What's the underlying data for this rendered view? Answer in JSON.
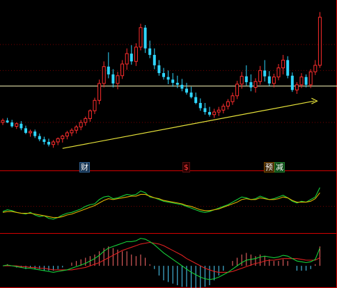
{
  "colors": {
    "background": "#000000",
    "up": "#ff2d2d",
    "down": "#2fd6ff",
    "pane_border": "#d40000",
    "grid": "#7a0000",
    "reference_line": "#fffdbe",
    "trendline": "#e7e33a",
    "osc_line_a": "#16d13a",
    "osc_line_b": "#e0b400",
    "macd_dif": "#16d13a",
    "macd_dea": "#e02020",
    "macd_hist_pos": "#ff6b6b",
    "macd_hist_neg": "#4fd3ff"
  },
  "markers": {
    "cai": "财",
    "dollar": "$",
    "yu": "预",
    "jian": "减"
  },
  "icons": {
    "trend_arrow": "arrow-right-icon"
  },
  "chart_data": [
    {
      "type": "candlestick",
      "pane": "price",
      "candles": [
        [
          101.0,
          101.6,
          100.6,
          101.3
        ],
        [
          101.3,
          101.7,
          100.9,
          101.0
        ],
        [
          101.0,
          101.4,
          100.2,
          100.4
        ],
        [
          100.4,
          101.0,
          100.0,
          100.8
        ],
        [
          100.8,
          101.2,
          99.8,
          100.1
        ],
        [
          100.1,
          100.5,
          99.2,
          99.4
        ],
        [
          99.4,
          99.9,
          98.8,
          99.6
        ],
        [
          99.6,
          99.9,
          98.6,
          98.9
        ],
        [
          98.9,
          99.3,
          98.1,
          98.4
        ],
        [
          98.4,
          98.8,
          97.6,
          98.0
        ],
        [
          98.0,
          98.5,
          97.3,
          97.6
        ],
        [
          97.6,
          98.3,
          97.1,
          98.0
        ],
        [
          98.0,
          98.7,
          97.5,
          98.5
        ],
        [
          98.5,
          99.1,
          97.9,
          98.9
        ],
        [
          98.9,
          99.7,
          98.4,
          99.4
        ],
        [
          99.4,
          100.1,
          98.9,
          99.8
        ],
        [
          99.8,
          100.6,
          99.3,
          100.3
        ],
        [
          100.3,
          101.4,
          99.8,
          101.0
        ],
        [
          101.0,
          101.9,
          100.5,
          101.6
        ],
        [
          101.6,
          103.0,
          101.1,
          102.8
        ],
        [
          102.8,
          104.8,
          102.3,
          104.4
        ],
        [
          104.4,
          107.6,
          103.8,
          107.0
        ],
        [
          107.0,
          110.4,
          106.4,
          109.6
        ],
        [
          109.6,
          111.8,
          107.8,
          108.4
        ],
        [
          108.4,
          109.2,
          106.4,
          107.0
        ],
        [
          107.0,
          108.8,
          106.1,
          108.2
        ],
        [
          108.2,
          110.6,
          107.7,
          110.0
        ],
        [
          110.0,
          112.4,
          109.1,
          111.6
        ],
        [
          111.6,
          112.9,
          109.9,
          110.4
        ],
        [
          110.4,
          113.2,
          109.7,
          112.6
        ],
        [
          112.6,
          116.2,
          112.1,
          115.6
        ],
        [
          115.6,
          116.0,
          111.7,
          112.4
        ],
        [
          112.4,
          113.6,
          110.9,
          111.4
        ],
        [
          111.4,
          112.4,
          109.2,
          109.8
        ],
        [
          109.8,
          110.6,
          108.2,
          108.6
        ],
        [
          108.6,
          109.4,
          107.6,
          108.0
        ],
        [
          108.0,
          109.0,
          106.9,
          107.6
        ],
        [
          107.6,
          108.6,
          106.5,
          107.1
        ],
        [
          107.1,
          108.2,
          106.3,
          106.8
        ],
        [
          106.8,
          107.7,
          105.8,
          106.2
        ],
        [
          106.2,
          107.1,
          105.3,
          105.6
        ],
        [
          105.6,
          106.5,
          104.7,
          104.9
        ],
        [
          104.9,
          105.6,
          103.8,
          104.0
        ],
        [
          104.0,
          104.7,
          102.8,
          103.2
        ],
        [
          103.2,
          104.0,
          102.2,
          102.6
        ],
        [
          102.6,
          103.4,
          101.9,
          102.2
        ],
        [
          102.2,
          103.1,
          101.7,
          102.6
        ],
        [
          102.6,
          103.4,
          102.0,
          102.9
        ],
        [
          102.9,
          103.9,
          102.4,
          103.5
        ],
        [
          103.5,
          104.6,
          103.0,
          104.2
        ],
        [
          104.2,
          105.6,
          103.7,
          105.1
        ],
        [
          105.1,
          107.4,
          104.6,
          106.9
        ],
        [
          106.9,
          108.8,
          106.2,
          108.1
        ],
        [
          108.1,
          109.8,
          106.7,
          107.2
        ],
        [
          107.2,
          108.4,
          105.8,
          106.4
        ],
        [
          106.4,
          107.8,
          105.6,
          107.3
        ],
        [
          107.3,
          109.7,
          106.8,
          109.0
        ],
        [
          109.0,
          110.6,
          107.3,
          108.1
        ],
        [
          108.1,
          108.9,
          106.6,
          107.0
        ],
        [
          107.0,
          108.5,
          106.4,
          108.0
        ],
        [
          108.0,
          110.0,
          107.5,
          109.4
        ],
        [
          109.4,
          111.4,
          108.4,
          110.6
        ],
        [
          110.6,
          111.2,
          107.8,
          108.2
        ],
        [
          108.2,
          108.7,
          105.7,
          106.0
        ],
        [
          106.0,
          107.2,
          105.4,
          106.8
        ],
        [
          106.8,
          108.6,
          106.3,
          108.0
        ],
        [
          108.0,
          108.4,
          106.4,
          106.8
        ],
        [
          106.8,
          109.2,
          106.3,
          108.8
        ],
        [
          108.8,
          110.6,
          108.3,
          109.8
        ],
        [
          109.8,
          118.0,
          109.4,
          117.2
        ]
      ],
      "y_range": [
        95.0,
        119.0
      ],
      "reference_level": 106.6,
      "trendline": {
        "from_index": 13,
        "from_value": 97.0,
        "to_index": 69,
        "to_value": 104.3,
        "arrow": true
      },
      "gridlines": [
        113.0,
        109.0,
        101.0
      ]
    },
    {
      "type": "line",
      "pane": "oscillator",
      "series": [
        {
          "values": [
            46,
            48,
            47,
            45,
            44,
            43,
            45,
            42,
            40,
            41,
            38,
            37,
            39,
            42,
            44,
            45,
            47,
            49,
            52,
            54,
            55,
            60,
            63,
            64,
            61,
            62,
            64,
            66,
            65,
            66,
            70,
            68,
            63,
            62,
            60,
            58,
            57,
            56,
            55,
            54,
            52,
            50,
            48,
            46,
            45,
            46,
            48,
            50,
            52,
            54,
            57,
            60,
            63,
            62,
            60,
            61,
            64,
            62,
            60,
            61,
            63,
            65,
            62,
            58,
            56,
            58,
            57,
            60,
            63,
            74
          ]
        },
        {
          "values": [
            45,
            46,
            46,
            45,
            44,
            44,
            44,
            43,
            42,
            41,
            40,
            39,
            39,
            40,
            42,
            43,
            45,
            47,
            49,
            51,
            53,
            56,
            59,
            61,
            60,
            61,
            62,
            63,
            64,
            64,
            66,
            66,
            64,
            62,
            61,
            59,
            58,
            57,
            56,
            55,
            53,
            52,
            50,
            48,
            47,
            47,
            48,
            49,
            51,
            53,
            55,
            57,
            60,
            61,
            60,
            60,
            62,
            61,
            60,
            60,
            61,
            63,
            62,
            59,
            57,
            57,
            57,
            58,
            61,
            68
          ]
        }
      ],
      "y_range": [
        20,
        90
      ],
      "gridlines": [
        52
      ]
    },
    {
      "type": "macd",
      "pane": "macd",
      "dif": [
        0.0,
        0.1,
        0.0,
        -0.1,
        -0.2,
        -0.3,
        -0.3,
        -0.4,
        -0.5,
        -0.6,
        -0.7,
        -0.8,
        -0.7,
        -0.6,
        -0.5,
        -0.3,
        -0.1,
        0.1,
        0.3,
        0.6,
        0.9,
        1.3,
        1.8,
        2.2,
        2.4,
        2.6,
        2.8,
        3.0,
        3.0,
        3.1,
        3.4,
        3.3,
        3.0,
        2.6,
        2.1,
        1.6,
        1.2,
        0.8,
        0.4,
        0.0,
        -0.4,
        -0.8,
        -1.1,
        -1.4,
        -1.6,
        -1.7,
        -1.6,
        -1.4,
        -1.1,
        -0.8,
        -0.4,
        0.0,
        0.4,
        0.7,
        0.8,
        0.9,
        1.1,
        1.2,
        1.1,
        1.0,
        1.1,
        1.3,
        1.2,
        0.9,
        0.6,
        0.5,
        0.4,
        0.5,
        0.8,
        2.2
      ],
      "dea": [
        0.0,
        0.0,
        0.0,
        0.0,
        -0.1,
        -0.1,
        -0.2,
        -0.2,
        -0.3,
        -0.3,
        -0.4,
        -0.5,
        -0.5,
        -0.5,
        -0.5,
        -0.5,
        -0.4,
        -0.3,
        -0.2,
        0.0,
        0.2,
        0.4,
        0.7,
        1.0,
        1.3,
        1.6,
        1.9,
        2.1,
        2.3,
        2.5,
        2.7,
        2.8,
        2.9,
        2.8,
        2.7,
        2.5,
        2.2,
        1.9,
        1.6,
        1.3,
        0.9,
        0.6,
        0.3,
        0.0,
        -0.3,
        -0.5,
        -0.7,
        -0.8,
        -0.8,
        -0.8,
        -0.7,
        -0.5,
        -0.3,
        -0.1,
        0.1,
        0.3,
        0.4,
        0.6,
        0.7,
        0.7,
        0.8,
        0.9,
        0.9,
        0.9,
        0.9,
        0.8,
        0.7,
        0.7,
        0.7,
        1.0
      ],
      "y_range": [
        -2.4,
        3.8
      ]
    }
  ]
}
